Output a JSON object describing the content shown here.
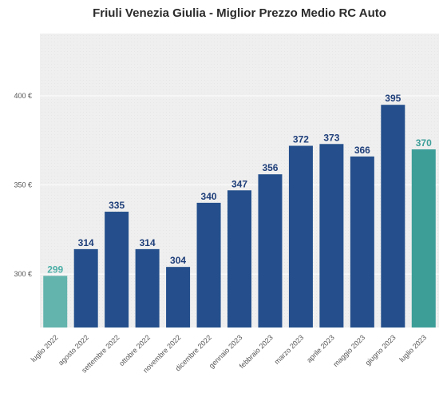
{
  "chart_data": {
    "type": "bar",
    "title": "Friuli Venezia Giulia - Miglior Prezzo Medio RC Auto",
    "categories": [
      "luglio 2022",
      "agosto 2022",
      "settembre 2022",
      "ottobre 2022",
      "novembre 2022",
      "dicembre 2022",
      "gennaio 2023",
      "febbraio 2023",
      "marzo 2023",
      "aprile 2023",
      "maggio 2023",
      "giugno 2023",
      "luglio 2023"
    ],
    "values": [
      299,
      314,
      335,
      314,
      304,
      340,
      347,
      356,
      372,
      373,
      366,
      395,
      370
    ],
    "data_labels": [
      "299",
      "314",
      "335",
      "314",
      "304",
      "340",
      "347",
      "356",
      "372",
      "373",
      "366",
      "395",
      "370"
    ],
    "bar_colors": [
      "#62b4ad",
      "#244f8c",
      "#244f8c",
      "#244f8c",
      "#244f8c",
      "#244f8c",
      "#244f8c",
      "#244f8c",
      "#244f8c",
      "#244f8c",
      "#244f8c",
      "#244f8c",
      "#3d9e98"
    ],
    "label_colors": [
      "#4fb0a8",
      "#1f3f7a",
      "#1f3f7a",
      "#1f3f7a",
      "#1f3f7a",
      "#1f3f7a",
      "#1f3f7a",
      "#1f3f7a",
      "#1f3f7a",
      "#1f3f7a",
      "#1f3f7a",
      "#1f3f7a",
      "#3d9e98"
    ],
    "xlabel": "",
    "ylabel": "",
    "ylim": [
      270,
      435
    ],
    "yticks": [
      300,
      350,
      400
    ],
    "ytick_labels": [
      "300 €",
      "350 €",
      "400 €"
    ],
    "grid": true,
    "legend": "none"
  }
}
